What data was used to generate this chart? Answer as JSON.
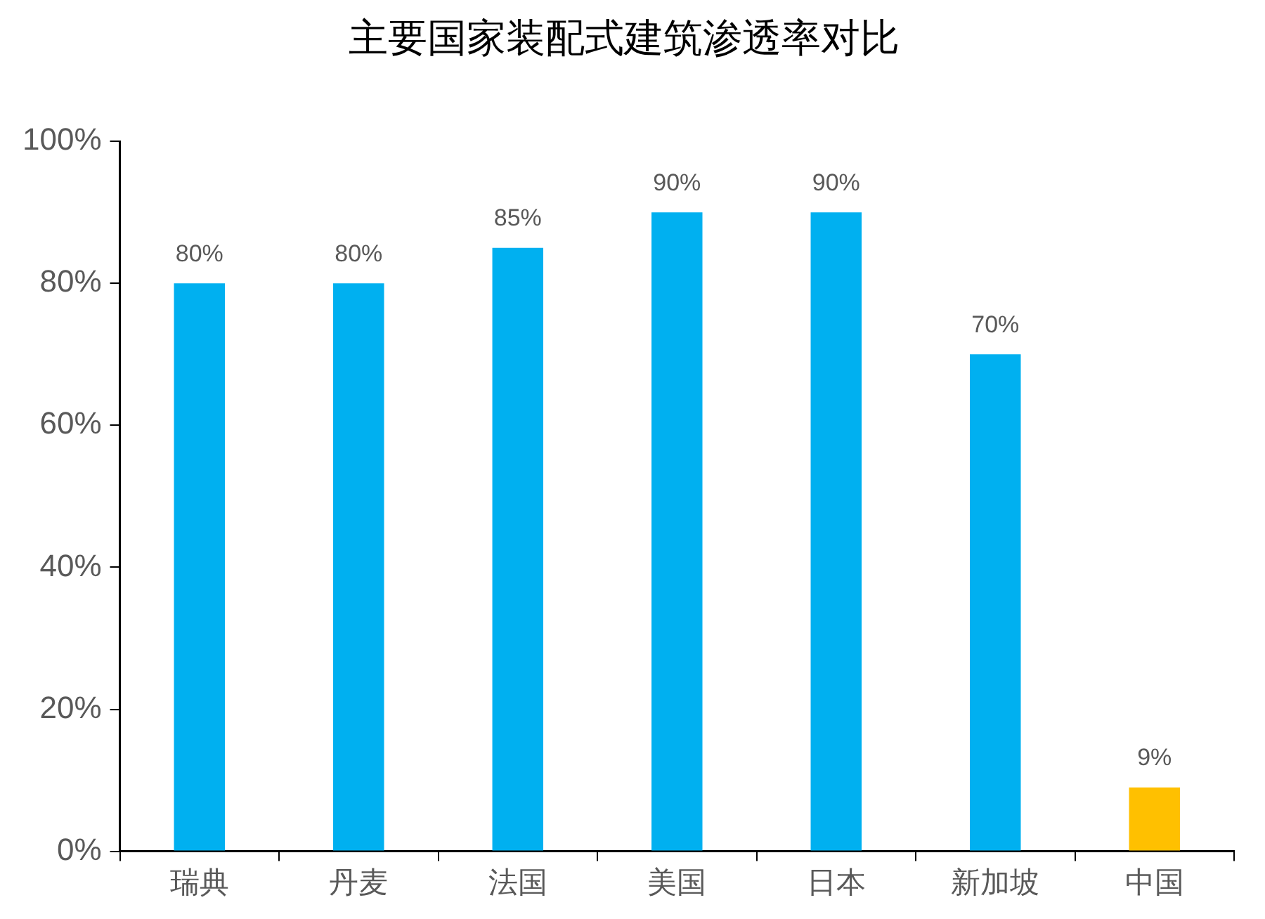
{
  "chart_data": {
    "type": "bar",
    "title": "主要国家装配式建筑渗透率对比",
    "categories": [
      "瑞典",
      "丹麦",
      "法国",
      "美国",
      "日本",
      "新加坡",
      "中国"
    ],
    "values": [
      80,
      80,
      85,
      90,
      90,
      70,
      9
    ],
    "colors": [
      "#00b0f0",
      "#00b0f0",
      "#00b0f0",
      "#00b0f0",
      "#00b0f0",
      "#00b0f0",
      "#ffc000"
    ],
    "value_labels": [
      "80%",
      "80%",
      "85%",
      "90%",
      "90%",
      "70%",
      "9%"
    ],
    "ylim": [
      0,
      100
    ],
    "yticks": [
      {
        "value": 0,
        "label": "0%"
      },
      {
        "value": 20,
        "label": "20%"
      },
      {
        "value": 40,
        "label": "40%"
      },
      {
        "value": 60,
        "label": "60%"
      },
      {
        "value": 80,
        "label": "80%"
      },
      {
        "value": 100,
        "label": "100%"
      }
    ],
    "grid": false,
    "legend": false
  }
}
